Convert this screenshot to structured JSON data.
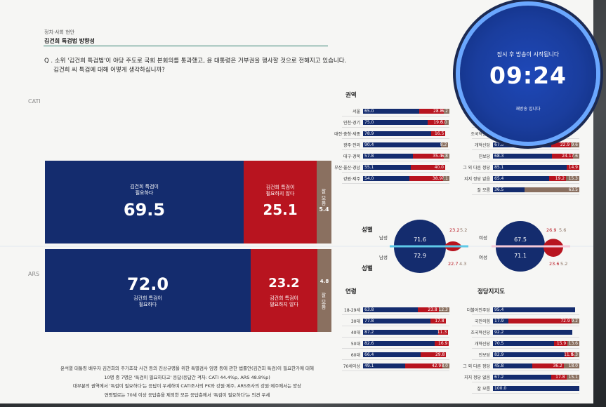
{
  "header": {
    "kicker": "정치·사회 현안",
    "topic": "김건희 특검법 방향성",
    "question_line1": "Q . 소위 '김건희 특검법'이 야당 주도로 국회 본회의를 통과했고, 윤 대통령은 거부권을 행사할 것으로 전해지고 있습니다.",
    "question_line2": "김건희 씨 특검에 대해 어떻게 생각하십니까?"
  },
  "methods": {
    "cati": "CATI",
    "ars": "ARS"
  },
  "colors": {
    "need": "#142c6e",
    "not_need": "#b8141f",
    "dont_know": "#8a7060",
    "accent_line": "#2d7d6e"
  },
  "chart_data": [
    {
      "type": "bar",
      "title": "",
      "stacked": true,
      "orientation": "horizontal",
      "categories": [
        "CATI",
        "ARS"
      ],
      "series": [
        {
          "name": "김건희 특검이 필요하다",
          "values": [
            69.5,
            72.0
          ]
        },
        {
          "name": "김건희 특검이 필요하지 않다",
          "values": [
            25.1,
            23.2
          ]
        },
        {
          "name": "잘 모름",
          "values": [
            5.4,
            4.8
          ]
        }
      ],
      "xlim": [
        0,
        100
      ]
    },
    {
      "type": "bar",
      "title": "권역",
      "stacked": true,
      "orientation": "horizontal",
      "categories": [
        "서울",
        "인천·경기",
        "대전·충청·세종",
        "광주·전라",
        "대구·경북",
        "부산·울산·경남",
        "강원·제주"
      ],
      "series": [
        {
          "name": "필요하다",
          "values": [
            65.0,
            75.0,
            78.9,
            90.4,
            57.8,
            55.1,
            54.0
          ]
        },
        {
          "name": "필요하지 않다",
          "values": [
            28.8,
            19.0,
            16.5,
            null,
            35.4,
            40.0,
            38.9
          ]
        },
        {
          "name": "잘 모름",
          "values": [
            6.2,
            5.0,
            null,
            8.2,
            6.8,
            null,
            7.1
          ]
        }
      ],
      "xlim": [
        0,
        100
      ]
    },
    {
      "type": "bar",
      "title": "",
      "stacked": true,
      "orientation": "horizontal",
      "categories": [
        "",
        "조국혁신당",
        "개혁신당",
        "진보당",
        "그 외 다른 정당",
        "지지 정당 없음",
        "잘 모름"
      ],
      "series": [
        {
          "name": "필요하다",
          "values": [
            null,
            null,
            67.5,
            68.3,
            85.1,
            65.4,
            36.5
          ]
        },
        {
          "name": "필요하지 않다",
          "values": [
            null,
            null,
            22.9,
            24.1,
            14.9,
            19.2,
            null
          ]
        },
        {
          "name": "잘 모름",
          "values": [
            null,
            null,
            9.6,
            7.6,
            null,
            15.3,
            63.5
          ]
        }
      ],
      "xlim": [
        0,
        100
      ]
    },
    {
      "type": "pie",
      "title": "성별",
      "groups": [
        {
          "label": "남성",
          "method": "CATI",
          "values": [
            71.6,
            23.2,
            5.2
          ]
        },
        {
          "label": "남성",
          "method": "ARS",
          "values": [
            72.9,
            22.7,
            4.3
          ]
        },
        {
          "label": "여성",
          "method": "CATI",
          "values": [
            67.5,
            26.9,
            5.6
          ]
        },
        {
          "label": "여성",
          "method": "ARS",
          "values": [
            71.1,
            23.6,
            5.2
          ]
        }
      ]
    },
    {
      "type": "bar",
      "title": "연령",
      "stacked": true,
      "orientation": "horizontal",
      "categories": [
        "18-29세",
        "30대",
        "40대",
        "50대",
        "60대",
        "70세이상"
      ],
      "series": [
        {
          "name": "필요하다",
          "values": [
            63.8,
            77.8,
            87.2,
            82.6,
            66.4,
            49.1
          ]
        },
        {
          "name": "필요하지 않다",
          "values": [
            23.8,
            17.8,
            11.3,
            16.9,
            29.8,
            42.9
          ]
        },
        {
          "name": "잘 모름",
          "values": [
            12.3,
            null,
            null,
            null,
            null,
            8.0
          ]
        }
      ],
      "xlim": [
        0,
        100
      ]
    },
    {
      "type": "bar",
      "title": "정당지지도",
      "stacked": true,
      "orientation": "horizontal",
      "categories": [
        "더불어민주당",
        "국민의힘",
        "조국혁신당",
        "개혁신당",
        "진보당",
        "그 외 다른 정당",
        "지지 정당 없음",
        "잘 모름"
      ],
      "series": [
        {
          "name": "필요하다",
          "values": [
            95.4,
            17.9,
            92.2,
            70.5,
            82.9,
            45.8,
            67.2,
            100.0
          ]
        },
        {
          "name": "필요하지 않다",
          "values": [
            null,
            72.9,
            null,
            15.9,
            11.8,
            36.2,
            17.8,
            null
          ]
        },
        {
          "name": "잘 모름",
          "values": [
            null,
            9.2,
            null,
            13.6,
            5.3,
            18.0,
            15.1,
            null
          ]
        }
      ],
      "xlim": [
        0,
        100
      ]
    }
  ],
  "big_labels": {
    "cati_need": "김건희 특검이\n필요하다",
    "cati_not": "김건희 특검이\n필요하지 않다",
    "dont_know": "잘 모름",
    "ars_need": "김건희 특검이\n필요하다",
    "ars_not": "김건희 특검이\n필요하지 않다"
  },
  "sex_labels": {
    "title_top": "성별",
    "title_bottom": "성별",
    "male": "남성",
    "female": "여성"
  },
  "notes": [
    "윤석열 대통령 배우자 김건희의 주가조작 사건 등의 진상규명을 위한 특별검사 임명 등에 관한 법률안(김건희 특검)이 필요한가에 대해",
    "10명 중 7명은 '특검이 필요하다고' 응답(응답간 격차: CATI 44.4%p, ARS 48.8%p)",
    "대부분의 권역에서 '특검이 필요하다'는 응답이 우세하며 CATI조사의 PK와 강원·제주, ARS조사의 강원·제주에서는 양상",
    "연령별로는 70세 이상 응답층을 제외한 모든 응답층에서 '특검이 필요하다'는 의견 우세"
  ],
  "timer": {
    "message": "잠시 후 방송이 시작됩니다",
    "time": "09:24",
    "sub": "재방송 입니다"
  }
}
